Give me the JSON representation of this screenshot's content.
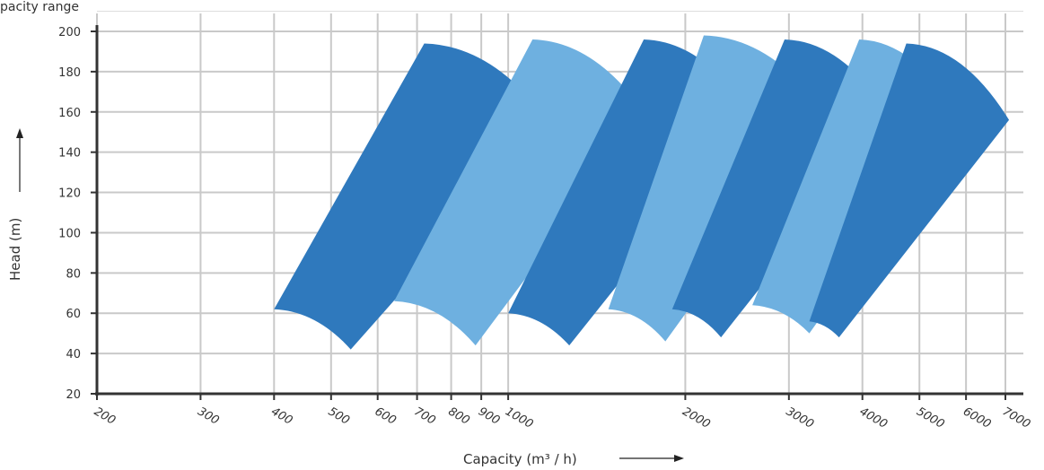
{
  "page": {
    "caption_fragment": "pacity range"
  },
  "chart_data": {
    "type": "area",
    "x_scale": "log",
    "xlim": [
      200,
      7000
    ],
    "ylim": [
      20,
      200
    ],
    "xlabel": "Capacity (m³ / h)",
    "ylabel": "Head (m)",
    "x_ticks": [
      200,
      300,
      400,
      500,
      600,
      700,
      800,
      900,
      1000,
      2000,
      3000,
      4000,
      5000,
      6000,
      7000
    ],
    "x_tick_labels": [
      "200",
      "300",
      "400",
      "500",
      "600",
      "700",
      "800",
      "900",
      "1000",
      "2000",
      "3000",
      "4000",
      "5000",
      "6000",
      "7000"
    ],
    "y_ticks": [
      20,
      40,
      60,
      80,
      100,
      120,
      140,
      160,
      180,
      200
    ],
    "y_tick_labels": [
      "20",
      "40",
      "60",
      "80",
      "100",
      "120",
      "140",
      "160",
      "180",
      "200"
    ],
    "grid": true,
    "regions": [
      {
        "color": "#2f79bd",
        "tl": [
          720,
          194
        ],
        "r": [
          1180,
          154
        ],
        "br": [
          540,
          42
        ],
        "bl": [
          400,
          62
        ]
      },
      {
        "color": "#6eb0e0",
        "tl": [
          1100,
          196
        ],
        "r": [
          1720,
          158
        ],
        "br": [
          880,
          44
        ],
        "bl": [
          640,
          66
        ]
      },
      {
        "color": "#2f79bd",
        "tl": [
          1700,
          196
        ],
        "r": [
          2600,
          158
        ],
        "br": [
          1270,
          44
        ],
        "bl": [
          1000,
          60
        ]
      },
      {
        "color": "#6eb0e0",
        "tl": [
          2150,
          198
        ],
        "r": [
          3500,
          158
        ],
        "br": [
          1850,
          46
        ],
        "bl": [
          1480,
          62
        ]
      },
      {
        "color": "#2f79bd",
        "tl": [
          2950,
          196
        ],
        "r": [
          4500,
          156
        ],
        "br": [
          2300,
          48
        ],
        "bl": [
          1900,
          62
        ]
      },
      {
        "color": "#6eb0e0",
        "tl": [
          3950,
          196
        ],
        "r": [
          5900,
          156
        ],
        "br": [
          3250,
          50
        ],
        "bl": [
          2600,
          64
        ]
      },
      {
        "color": "#2f79bd",
        "tl": [
          4750,
          194
        ],
        "r": [
          7100,
          156
        ],
        "br": [
          3650,
          48
        ],
        "bl": [
          3250,
          56
        ]
      }
    ]
  }
}
